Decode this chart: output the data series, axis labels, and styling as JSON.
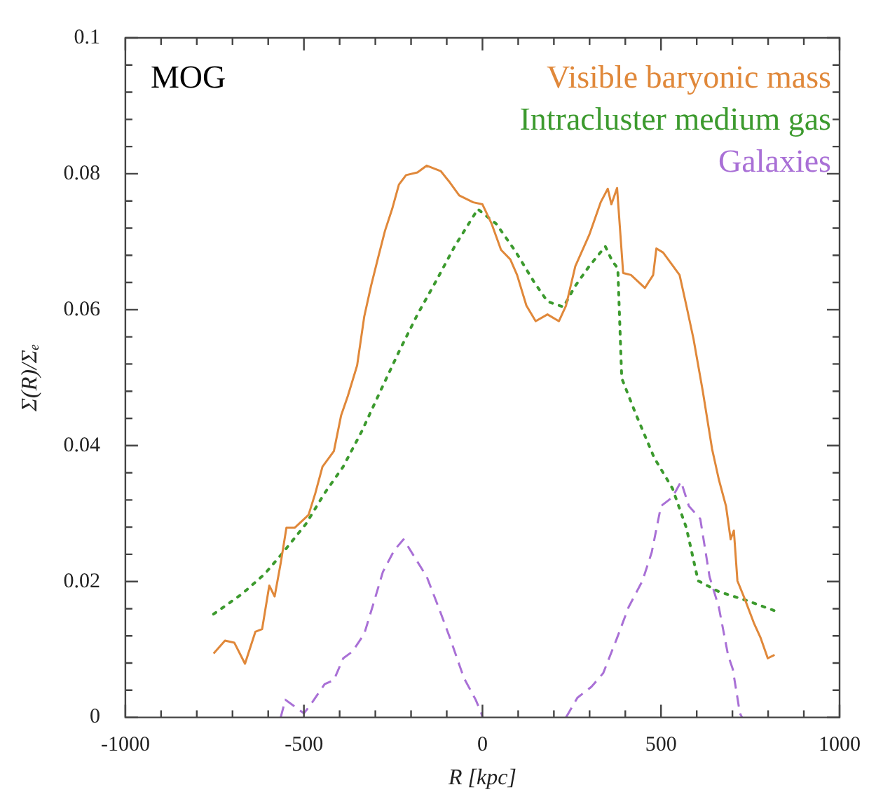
{
  "chart_data": {
    "type": "line",
    "xlabel": "R [kpc]",
    "ylabel": "Σ(R)/Σₑ",
    "annotations": [
      "MOG"
    ],
    "xlim": [
      -1000,
      1000
    ],
    "xticks": [
      -1000,
      {
        "value": -900,
        "label": null
      },
      {
        "value": -800,
        "label": null
      },
      {
        "value": -700,
        "label": null
      },
      {
        "value": -600,
        "label": null
      },
      -500,
      {
        "value": -400,
        "label": null
      },
      {
        "value": -300,
        "label": null
      },
      {
        "value": -200,
        "label": null
      },
      {
        "value": -100,
        "label": null
      },
      0,
      {
        "value": 100,
        "label": null
      },
      {
        "value": 200,
        "label": null
      },
      {
        "value": 300,
        "label": null
      },
      {
        "value": 400,
        "label": null
      },
      500,
      {
        "value": 600,
        "label": null
      },
      {
        "value": 700,
        "label": null
      },
      {
        "value": 800,
        "label": null
      },
      {
        "value": 900,
        "label": null
      },
      1000
    ],
    "ylim": [
      0,
      0.1
    ],
    "yticks": [
      0,
      {
        "value": 0.004,
        "label": null
      },
      {
        "value": 0.008,
        "label": null
      },
      {
        "value": 0.012,
        "label": null
      },
      {
        "value": 0.016,
        "label": null
      },
      0.02,
      {
        "value": 0.024,
        "label": null
      },
      {
        "value": 0.028,
        "label": null
      },
      {
        "value": 0.032,
        "label": null
      },
      {
        "value": 0.036,
        "label": null
      },
      0.04,
      {
        "value": 0.044,
        "label": null
      },
      {
        "value": 0.048,
        "label": null
      },
      {
        "value": 0.052,
        "label": null
      },
      {
        "value": 0.056,
        "label": null
      },
      0.06,
      {
        "value": 0.064,
        "label": null
      },
      {
        "value": 0.068,
        "label": null
      },
      {
        "value": 0.072,
        "label": null
      },
      {
        "value": 0.076,
        "label": null
      },
      0.08,
      {
        "value": 0.084,
        "label": null
      },
      {
        "value": 0.088,
        "label": null
      },
      {
        "value": 0.092,
        "label": null
      },
      {
        "value": 0.096,
        "label": null
      },
      0.1
    ],
    "grid": false,
    "legend": "top right",
    "marker": "none",
    "series": [
      {
        "name": "Visible baryonic mass",
        "color": "#e0883a",
        "line_style": "solid",
        "x": [
          -753,
          -721,
          -695,
          -665,
          -636,
          -617,
          -597,
          -582,
          -565,
          -549,
          -526,
          -487,
          -468,
          -448,
          -416,
          -396,
          -377,
          -351,
          -331,
          -312,
          -292,
          -273,
          -253,
          -234,
          -214,
          -182,
          -156,
          -117,
          -91,
          -65,
          -26,
          0,
          26,
          52,
          78,
          97,
          123,
          149,
          182,
          214,
          234,
          260,
          299,
          331,
          351,
          361,
          377,
          394,
          416,
          455,
          478,
          487,
          506,
          552,
          571,
          591,
          617,
          643,
          662,
          682,
          695,
          704,
          714,
          734,
          760,
          779,
          799,
          818
        ],
        "values": [
          0.0094,
          0.0113,
          0.011,
          0.0079,
          0.0126,
          0.013,
          0.0194,
          0.0178,
          0.0227,
          0.0279,
          0.0279,
          0.0298,
          0.033,
          0.0369,
          0.0392,
          0.0444,
          0.0473,
          0.0518,
          0.059,
          0.0635,
          0.0677,
          0.0716,
          0.0748,
          0.0784,
          0.0798,
          0.0802,
          0.0812,
          0.0804,
          0.0787,
          0.0768,
          0.0758,
          0.0755,
          0.0726,
          0.0688,
          0.0674,
          0.0651,
          0.0606,
          0.0583,
          0.0593,
          0.0583,
          0.0606,
          0.0664,
          0.071,
          0.0758,
          0.0778,
          0.0755,
          0.0779,
          0.0654,
          0.0651,
          0.0632,
          0.0651,
          0.069,
          0.0684,
          0.0651,
          0.0606,
          0.0557,
          0.048,
          0.0395,
          0.035,
          0.0311,
          0.0262,
          0.0275,
          0.0201,
          0.0175,
          0.0139,
          0.0117,
          0.0087,
          0.0092
        ]
      },
      {
        "name": "Intracluster medium gas",
        "color": "#3c9a2e",
        "line_style": "dotted",
        "x": [
          -753,
          -675,
          -610,
          -558,
          -494,
          -442,
          -390,
          -338,
          -286,
          -234,
          -182,
          -130,
          -78,
          -13,
          39,
          91,
          143,
          182,
          227,
          260,
          299,
          344,
          364,
          379,
          390,
          429,
          481,
          532,
          571,
          604,
          662,
          740,
          818
        ],
        "values": [
          0.0152,
          0.0181,
          0.0211,
          0.0243,
          0.0285,
          0.033,
          0.0369,
          0.0421,
          0.048,
          0.0538,
          0.0593,
          0.0642,
          0.0693,
          0.0748,
          0.0726,
          0.0687,
          0.0642,
          0.0612,
          0.0604,
          0.0635,
          0.0664,
          0.0693,
          0.0671,
          0.0661,
          0.0499,
          0.0447,
          0.0382,
          0.0337,
          0.0279,
          0.0201,
          0.0185,
          0.0172,
          0.0157
        ]
      },
      {
        "name": "Galaxies",
        "color": "#a970d6",
        "line_style": "dashed",
        "x": [
          -565,
          -552,
          -526,
          -500,
          -481,
          -442,
          -416,
          -390,
          -364,
          -331,
          -305,
          -279,
          -247,
          -221,
          -195,
          -156,
          -123,
          -91,
          -52,
          -19,
          -3,
          0,
          120,
          234,
          266,
          305,
          338,
          377,
          409,
          448,
          474,
          500,
          532,
          556,
          578,
          610,
          636,
          662,
          688,
          701,
          721,
          727
        ],
        "values": [
          0,
          0.0026,
          0.0016,
          0.0006,
          0.0019,
          0.0049,
          0.0055,
          0.0087,
          0.0097,
          0.0123,
          0.0168,
          0.0214,
          0.0246,
          0.0262,
          0.024,
          0.0207,
          0.0162,
          0.0117,
          0.0058,
          0.0026,
          0.0006,
          0,
          null,
          0,
          0.0029,
          0.0045,
          0.0065,
          0.0117,
          0.0162,
          0.0201,
          0.0243,
          0.0311,
          0.0324,
          0.0347,
          0.0311,
          0.0292,
          0.0207,
          0.0162,
          0.0091,
          0.0071,
          0.0006,
          0
        ]
      }
    ]
  }
}
